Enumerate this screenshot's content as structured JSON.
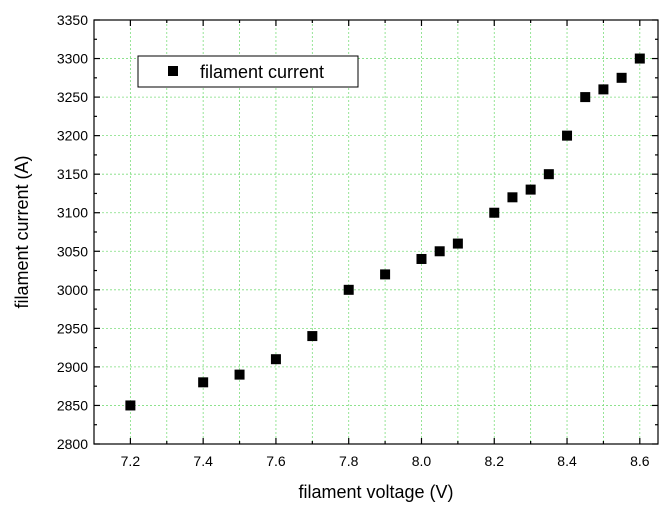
{
  "chart_data": {
    "type": "scatter",
    "xlabel": "filament voltage (V)",
    "ylabel": "filament current (A)",
    "xlim": [
      7.1,
      8.65
    ],
    "ylim": [
      2800,
      3350
    ],
    "xticks": [
      "7.2",
      "7.4",
      "7.6",
      "7.8",
      "8.0",
      "8.2",
      "8.4",
      "8.6"
    ],
    "yticks": [
      "2800",
      "2850",
      "2900",
      "2950",
      "3000",
      "3050",
      "3100",
      "3150",
      "3200",
      "3250",
      "3300",
      "3350"
    ],
    "grid": true,
    "legend_position": "top-left",
    "series": [
      {
        "name": "filament current",
        "marker": "square",
        "color": "#000000",
        "x": [
          7.2,
          7.4,
          7.5,
          7.6,
          7.7,
          7.8,
          7.9,
          8.0,
          8.05,
          8.1,
          8.2,
          8.25,
          8.3,
          8.35,
          8.4,
          8.45,
          8.5,
          8.55,
          8.6
        ],
        "y": [
          2850,
          2880,
          2890,
          2910,
          2940,
          3000,
          3020,
          3040,
          3050,
          3060,
          3100,
          3120,
          3130,
          3150,
          3200,
          3250,
          3260,
          3275,
          3300
        ]
      }
    ]
  }
}
